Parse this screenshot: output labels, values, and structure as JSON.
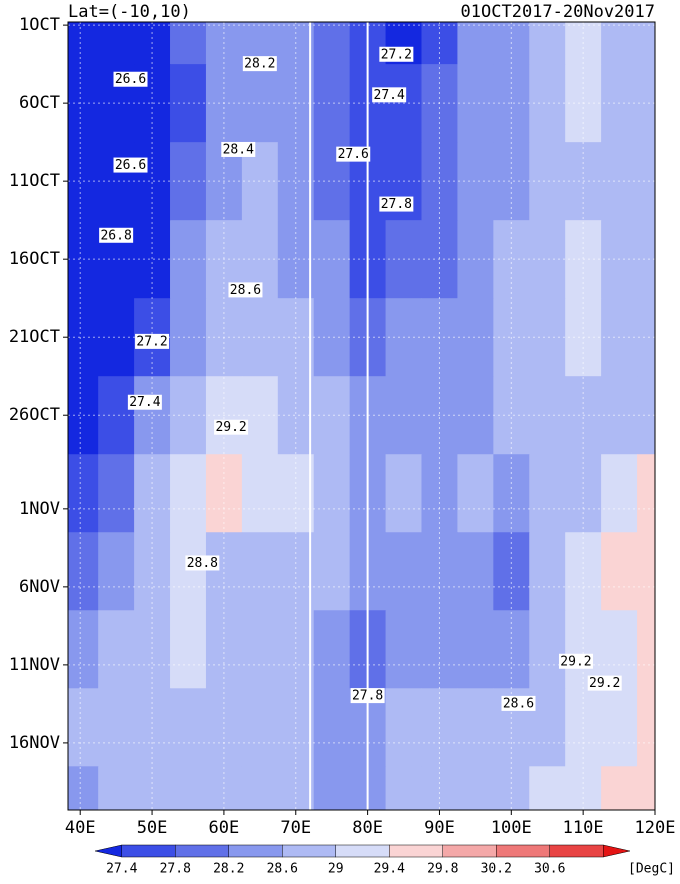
{
  "chart_data": {
    "type": "hovmoller",
    "title_left": "Lat=(-10,10)",
    "title_right": "01OCT2017-20Nov2017",
    "xlim": [
      38.3,
      120
    ],
    "xticks": [
      {
        "value": 40,
        "label": "40E"
      },
      {
        "value": 50,
        "label": "50E"
      },
      {
        "value": 60,
        "label": "60E"
      },
      {
        "value": 70,
        "label": "70E"
      },
      {
        "value": 80,
        "label": "80E"
      },
      {
        "value": 90,
        "label": "90E"
      },
      {
        "value": 100,
        "label": "100E"
      },
      {
        "value": 110,
        "label": "110E"
      },
      {
        "value": 120,
        "label": "120E"
      }
    ],
    "ylim": [
      -0.2,
      50.3
    ],
    "yticks": [
      {
        "value": 0,
        "label": "1OCT"
      },
      {
        "value": 5,
        "label": "6OCT"
      },
      {
        "value": 10,
        "label": "11OCT"
      },
      {
        "value": 15,
        "label": "16OCT"
      },
      {
        "value": 20,
        "label": "21OCT"
      },
      {
        "value": 25,
        "label": "26OCT"
      },
      {
        "value": 31,
        "label": "1NOV"
      },
      {
        "value": 36,
        "label": "6NOV"
      },
      {
        "value": 41,
        "label": "11NOV"
      },
      {
        "value": 46,
        "label": "16NOV"
      }
    ],
    "grid": true,
    "marker_lons": [
      72,
      80
    ],
    "z_lons": [
      40,
      45,
      50,
      55,
      60,
      65,
      70,
      75,
      80,
      85,
      90,
      95,
      100,
      105,
      110,
      115,
      120
    ],
    "z_days": [
      0,
      5,
      10,
      15,
      20,
      25,
      30,
      35,
      40,
      45,
      50
    ],
    "z": [
      [
        27.0,
        26.8,
        27.2,
        27.8,
        28.2,
        28.2,
        28.2,
        28.0,
        27.6,
        27.2,
        27.6,
        28.2,
        28.4,
        28.8,
        29.0,
        28.8,
        28.8
      ],
      [
        26.8,
        26.8,
        26.8,
        27.6,
        28.2,
        28.4,
        28.4,
        28.0,
        27.6,
        27.4,
        27.8,
        28.2,
        28.4,
        28.8,
        29.0,
        28.8,
        28.8
      ],
      [
        26.8,
        26.6,
        27.0,
        28.0,
        28.4,
        28.6,
        28.4,
        28.0,
        27.6,
        27.6,
        27.8,
        28.2,
        28.4,
        28.8,
        28.8,
        28.6,
        28.8
      ],
      [
        26.8,
        26.8,
        27.2,
        28.2,
        28.6,
        28.6,
        28.4,
        28.2,
        27.6,
        27.8,
        28.0,
        28.2,
        28.6,
        28.8,
        29.0,
        28.6,
        28.8
      ],
      [
        27.0,
        27.0,
        27.4,
        28.4,
        28.8,
        28.8,
        28.6,
        28.4,
        28.0,
        28.2,
        28.2,
        28.4,
        28.6,
        28.8,
        29.0,
        28.8,
        28.8
      ],
      [
        27.2,
        27.4,
        28.4,
        28.8,
        29.2,
        29.0,
        28.8,
        28.6,
        28.4,
        28.4,
        28.4,
        28.4,
        28.6,
        28.6,
        28.8,
        28.8,
        28.6
      ],
      [
        27.4,
        27.8,
        28.6,
        29.2,
        29.4,
        29.2,
        29.0,
        28.6,
        28.4,
        28.6,
        28.4,
        28.6,
        28.4,
        28.8,
        28.8,
        29.0,
        29.4
      ],
      [
        27.8,
        28.2,
        28.8,
        29.0,
        28.8,
        28.8,
        28.6,
        28.6,
        28.4,
        28.4,
        28.4,
        28.2,
        28.0,
        28.8,
        29.0,
        29.4,
        29.6
      ],
      [
        28.2,
        28.6,
        28.8,
        29.0,
        28.8,
        28.6,
        28.6,
        28.2,
        27.8,
        28.4,
        28.4,
        28.4,
        28.2,
        28.8,
        29.2,
        29.2,
        29.4
      ],
      [
        28.6,
        28.8,
        28.6,
        28.6,
        28.6,
        28.8,
        28.6,
        28.4,
        28.2,
        28.6,
        28.6,
        28.8,
        28.6,
        28.8,
        29.2,
        29.2,
        29.6
      ],
      [
        28.4,
        28.6,
        28.6,
        28.6,
        28.6,
        28.8,
        28.6,
        28.4,
        28.4,
        28.6,
        28.8,
        28.8,
        28.6,
        29.0,
        29.2,
        29.4,
        29.6
      ]
    ],
    "levels": [
      27.4,
      27.8,
      28.2,
      28.6,
      29,
      29.4,
      29.8,
      30.2,
      30.6
    ],
    "colors": [
      "#1428e0",
      "#3c4ee6",
      "#6070e8",
      "#8898ee",
      "#aebaf4",
      "#d6dcf8",
      "#fad4d4",
      "#f4a8a8",
      "#ee7878",
      "#e84444",
      "#e41414"
    ],
    "unit": "[DegC]",
    "contour_labels": [
      {
        "lon": 47,
        "day": 3.5,
        "value": 26.6
      },
      {
        "lon": 47,
        "day": 9,
        "value": 26.6
      },
      {
        "lon": 45,
        "day": 13.5,
        "value": 26.8
      },
      {
        "lon": 50,
        "day": 20.3,
        "value": 27.2
      },
      {
        "lon": 49,
        "day": 24.2,
        "value": 27.4
      },
      {
        "lon": 65,
        "day": 2.5,
        "value": 28.2
      },
      {
        "lon": 62,
        "day": 8,
        "value": 28.4
      },
      {
        "lon": 84,
        "day": 1.9,
        "value": 27.2
      },
      {
        "lon": 83,
        "day": 4.5,
        "value": 27.4
      },
      {
        "lon": 78,
        "day": 8.3,
        "value": 27.6
      },
      {
        "lon": 84,
        "day": 11.5,
        "value": 27.8
      },
      {
        "lon": 63,
        "day": 17,
        "value": 28.6
      },
      {
        "lon": 61,
        "day": 25.8,
        "value": 29.2
      },
      {
        "lon": 57,
        "day": 34.5,
        "value": 28.8
      },
      {
        "lon": 101,
        "day": 43.5,
        "value": 28.6
      },
      {
        "lon": 113,
        "day": 42.2,
        "value": 29.2
      },
      {
        "lon": 109,
        "day": 40.8,
        "value": 29.2
      },
      {
        "lon": 80,
        "day": 43,
        "value": 27.8
      }
    ]
  }
}
